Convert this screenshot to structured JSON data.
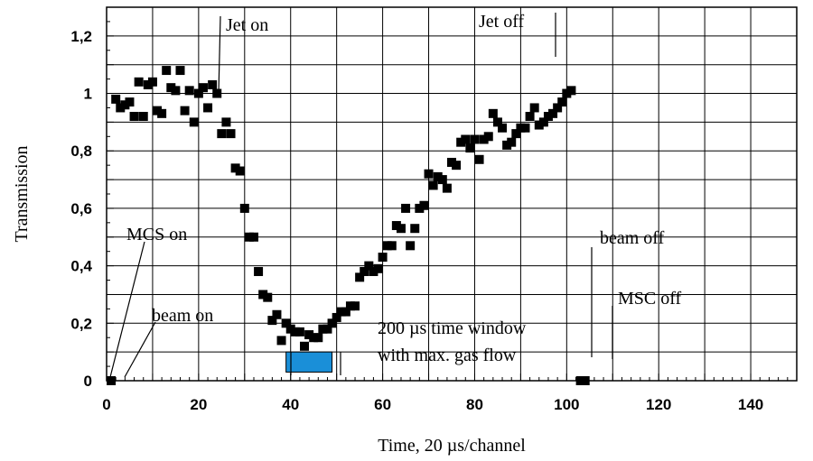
{
  "chart_data": {
    "type": "scatter",
    "title": "",
    "xlabel": "Time,  20 µs/channel",
    "ylabel": "Transmission",
    "xlim": [
      0,
      150
    ],
    "ylim": [
      0,
      1.3
    ],
    "x_ticks": [
      0,
      20,
      40,
      60,
      80,
      100,
      120,
      140
    ],
    "y_ticks": [
      0,
      0.2,
      0.4,
      0.6,
      0.8,
      1.0,
      1.2
    ],
    "x_tick_labels": [
      "0",
      "20",
      "40",
      "60",
      "80",
      "100",
      "120",
      "140"
    ],
    "y_tick_labels": [
      "0",
      "0,2",
      "0,4",
      "0,6",
      "0,8",
      "1",
      "1,2"
    ],
    "grid": true,
    "marker_color": "#000000",
    "series": [
      {
        "points": [
          [
            1,
            0.0
          ],
          [
            2,
            0.98
          ],
          [
            3,
            0.95
          ],
          [
            4,
            0.96
          ],
          [
            5,
            0.97
          ],
          [
            6,
            0.92
          ],
          [
            7,
            1.04
          ],
          [
            8,
            0.92
          ],
          [
            9,
            1.03
          ],
          [
            10,
            1.04
          ],
          [
            11,
            0.94
          ],
          [
            12,
            0.93
          ],
          [
            13,
            1.08
          ],
          [
            14,
            1.02
          ],
          [
            15,
            1.01
          ],
          [
            16,
            1.08
          ],
          [
            17,
            0.94
          ],
          [
            18,
            1.01
          ],
          [
            19,
            0.9
          ],
          [
            20,
            1.0
          ],
          [
            21,
            1.02
          ],
          [
            22,
            0.95
          ],
          [
            23,
            1.03
          ],
          [
            24,
            1.0
          ],
          [
            25,
            0.86
          ],
          [
            26,
            0.9
          ],
          [
            27,
            0.86
          ],
          [
            28,
            0.74
          ],
          [
            29,
            0.73
          ],
          [
            30,
            0.6
          ],
          [
            31,
            0.5
          ],
          [
            32,
            0.5
          ],
          [
            33,
            0.38
          ],
          [
            34,
            0.3
          ],
          [
            35,
            0.29
          ],
          [
            36,
            0.21
          ],
          [
            37,
            0.23
          ],
          [
            38,
            0.14
          ],
          [
            39,
            0.2
          ],
          [
            40,
            0.18
          ],
          [
            41,
            0.17
          ],
          [
            42,
            0.17
          ],
          [
            43,
            0.12
          ],
          [
            44,
            0.16
          ],
          [
            45,
            0.15
          ],
          [
            46,
            0.15
          ],
          [
            47,
            0.18
          ],
          [
            48,
            0.18
          ],
          [
            49,
            0.2
          ],
          [
            50,
            0.22
          ],
          [
            51,
            0.24
          ],
          [
            52,
            0.24
          ],
          [
            53,
            0.26
          ],
          [
            54,
            0.26
          ],
          [
            55,
            0.36
          ],
          [
            56,
            0.38
          ],
          [
            57,
            0.4
          ],
          [
            58,
            0.38
          ],
          [
            59,
            0.39
          ],
          [
            60,
            0.43
          ],
          [
            61,
            0.47
          ],
          [
            62,
            0.47
          ],
          [
            63,
            0.54
          ],
          [
            64,
            0.53
          ],
          [
            65,
            0.6
          ],
          [
            66,
            0.47
          ],
          [
            67,
            0.53
          ],
          [
            68,
            0.6
          ],
          [
            69,
            0.61
          ],
          [
            70,
            0.72
          ],
          [
            71,
            0.68
          ],
          [
            72,
            0.71
          ],
          [
            73,
            0.7
          ],
          [
            74,
            0.67
          ],
          [
            75,
            0.76
          ],
          [
            76,
            0.75
          ],
          [
            77,
            0.83
          ],
          [
            78,
            0.84
          ],
          [
            79,
            0.81
          ],
          [
            80,
            0.84
          ],
          [
            81,
            0.77
          ],
          [
            82,
            0.84
          ],
          [
            83,
            0.85
          ],
          [
            84,
            0.93
          ],
          [
            85,
            0.9
          ],
          [
            86,
            0.88
          ],
          [
            87,
            0.82
          ],
          [
            88,
            0.83
          ],
          [
            89,
            0.86
          ],
          [
            90,
            0.88
          ],
          [
            91,
            0.88
          ],
          [
            92,
            0.92
          ],
          [
            93,
            0.95
          ],
          [
            94,
            0.89
          ],
          [
            95,
            0.9
          ],
          [
            96,
            0.92
          ],
          [
            97,
            0.93
          ],
          [
            98,
            0.95
          ],
          [
            99,
            0.97
          ],
          [
            100,
            1.0
          ],
          [
            101,
            1.01
          ],
          [
            103,
            0.0
          ],
          [
            104,
            0.0
          ]
        ]
      }
    ],
    "annotations": [
      {
        "text": "Jet on",
        "at_x": 24,
        "at_y": 1.0
      },
      {
        "text": "Jet off",
        "at_x": 95,
        "at_y": 1.12
      },
      {
        "text": "MCS on",
        "at_x": 1,
        "at_y": 0.0
      },
      {
        "text": "beam on",
        "at_x": 4,
        "at_y": 0.03
      },
      {
        "text": "beam off",
        "at_x": 103,
        "at_y": 0.08
      },
      {
        "text": "MSC off",
        "at_x": 106,
        "at_y": 0.08
      },
      {
        "text": "200 µs time window",
        "at_x": 39,
        "at_y": 0.1
      },
      {
        "text": "with max. gas flow",
        "at_x": 39,
        "at_y": 0.1
      }
    ],
    "highlight_window": {
      "x_start": 39,
      "x_end": 49,
      "y_start": 0.03,
      "y_end": 0.1,
      "color": "#1a8fd8"
    }
  }
}
